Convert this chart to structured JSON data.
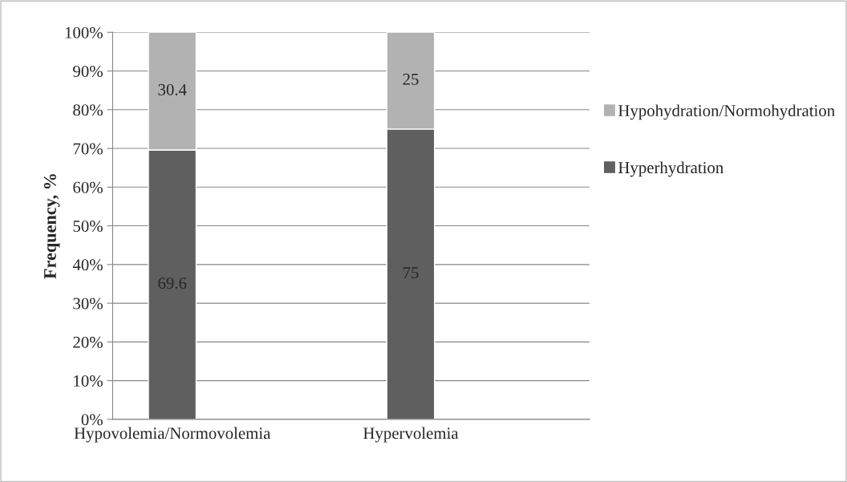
{
  "chart_data": {
    "type": "bar",
    "stacked": true,
    "ylabel": "Frequency, %",
    "categories": [
      "Hypovolemia/Normovolemia",
      "Hypervolemia"
    ],
    "series": [
      {
        "name": "Hyperhydration",
        "color": "#5f5f5f",
        "values": [
          69.6,
          75
        ]
      },
      {
        "name": "Hypohydration/Normohydration",
        "color": "#b2b2b2",
        "values": [
          30.4,
          25
        ]
      }
    ],
    "ylim": [
      0,
      100
    ],
    "yticks": [
      {
        "value": 0,
        "label": "0%"
      },
      {
        "value": 10,
        "label": "10%"
      },
      {
        "value": 20,
        "label": "20%"
      },
      {
        "value": 30,
        "label": "30%"
      },
      {
        "value": 40,
        "label": "40%"
      },
      {
        "value": 50,
        "label": "50%"
      },
      {
        "value": 60,
        "label": "60%"
      },
      {
        "value": 70,
        "label": "70%"
      },
      {
        "value": 80,
        "label": "80%"
      },
      {
        "value": 90,
        "label": "90%"
      },
      {
        "value": 100,
        "label": "100%"
      }
    ],
    "data_labels": true,
    "grid": "y",
    "legend": "right"
  }
}
